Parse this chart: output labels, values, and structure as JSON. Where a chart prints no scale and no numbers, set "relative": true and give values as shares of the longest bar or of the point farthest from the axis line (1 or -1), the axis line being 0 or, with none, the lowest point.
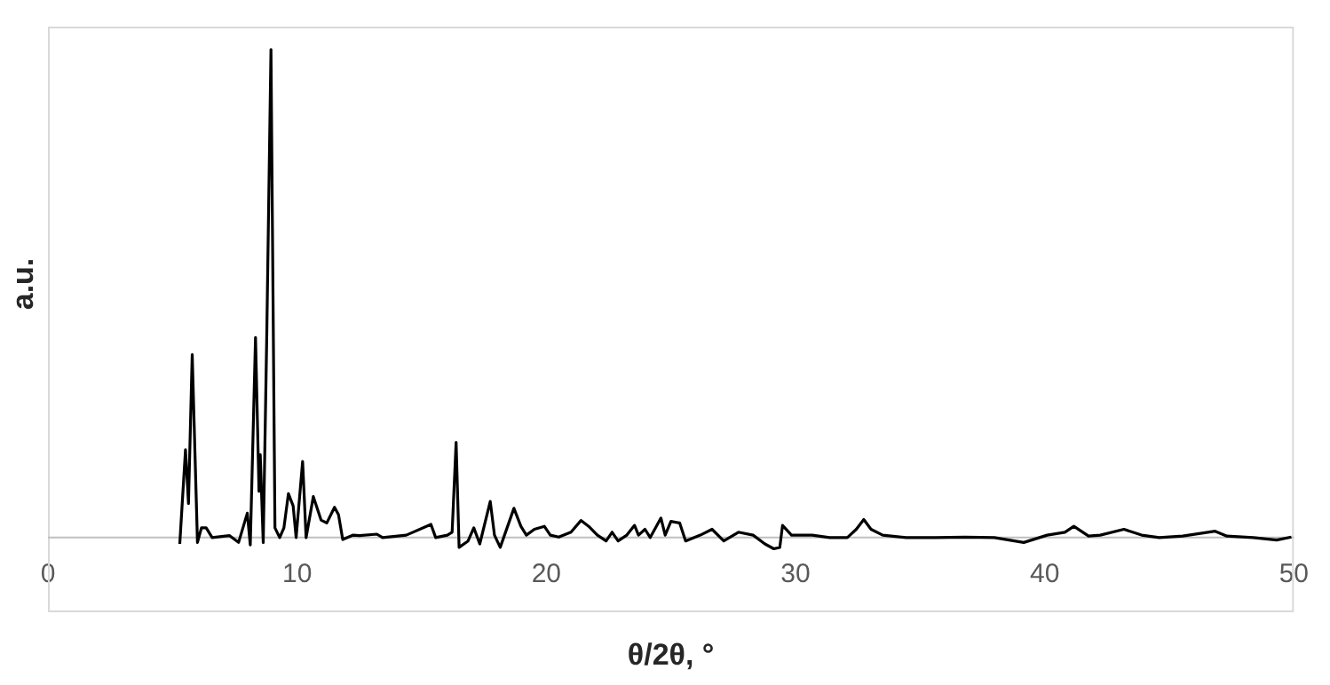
{
  "chart_data": {
    "type": "line",
    "xlabel": "θ/2θ, °",
    "ylabel": "a.u.",
    "relative": true,
    "xlim": [
      0,
      50
    ],
    "xticks": [
      0,
      10,
      20,
      30,
      40,
      50
    ],
    "grid": false,
    "legend": false,
    "marker": "none",
    "line_style": "solid",
    "x": [
      5.29,
      5.52,
      5.64,
      5.79,
      6.0,
      6.16,
      6.35,
      6.59,
      7.29,
      7.65,
      8.0,
      8.12,
      8.33,
      8.47,
      8.52,
      8.64,
      8.78,
      8.95,
      9.11,
      9.3,
      9.47,
      9.65,
      9.84,
      9.96,
      10.22,
      10.36,
      10.65,
      10.96,
      11.19,
      11.5,
      11.66,
      11.83,
      12.25,
      12.5,
      13.2,
      13.43,
      14.38,
      15.37,
      15.56,
      16.03,
      16.22,
      16.38,
      16.5,
      16.86,
      17.09,
      17.33,
      17.75,
      17.92,
      18.15,
      18.7,
      18.98,
      19.2,
      19.52,
      19.92,
      20.16,
      20.5,
      20.99,
      21.39,
      21.7,
      22.05,
      22.4,
      22.64,
      22.88,
      23.23,
      23.54,
      23.7,
      23.96,
      24.17,
      24.6,
      24.77,
      25.0,
      25.35,
      25.59,
      26.18,
      26.65,
      27.12,
      27.71,
      28.3,
      28.77,
      29.13,
      29.37,
      29.48,
      29.84,
      30.67,
      31.37,
      32.08,
      32.44,
      32.74,
      33.03,
      33.5,
      34.44,
      35.62,
      36.8,
      37.98,
      39.16,
      40.1,
      40.81,
      41.17,
      41.76,
      42.23,
      43.18,
      43.89,
      44.6,
      45.54,
      46.84,
      47.31,
      48.37,
      49.31,
      49.9
    ],
    "series": [
      {
        "color": "#000000",
        "values": [
          -0.013,
          0.18,
          0.07,
          0.375,
          -0.01,
          0.02,
          0.02,
          0,
          0.004,
          -0.01,
          0.05,
          -0.015,
          0.41,
          0.095,
          0.17,
          -0.01,
          0.41,
          1,
          0.02,
          0,
          0.02,
          0.09,
          0.065,
          0,
          0.156,
          0,
          0.084,
          0.036,
          0.03,
          0.062,
          0.047,
          -0.004,
          0.005,
          0.004,
          0.007,
          0,
          0.005,
          0.027,
          0,
          0.005,
          0.011,
          0.195,
          -0.02,
          -0.007,
          0.02,
          -0.013,
          0.074,
          0.005,
          -0.02,
          0.06,
          0.023,
          0.005,
          0.017,
          0.023,
          0.005,
          0.001,
          0.011,
          0.035,
          0.023,
          0.005,
          -0.007,
          0.011,
          -0.007,
          0.005,
          0.025,
          0.005,
          0.017,
          0,
          0.04,
          0.005,
          0.033,
          0.03,
          -0.007,
          0.005,
          0.017,
          -0.007,
          0.011,
          0.005,
          -0.013,
          -0.023,
          -0.02,
          0.025,
          0.005,
          0.005,
          0,
          0,
          0.017,
          0.037,
          0.017,
          0.005,
          0,
          0,
          0.001,
          0,
          -0.01,
          0.005,
          0.011,
          0.023,
          0.003,
          0.005,
          0.017,
          0.005,
          0,
          0.003,
          0.013,
          0.003,
          0,
          -0.005,
          0.001
        ]
      }
    ]
  }
}
